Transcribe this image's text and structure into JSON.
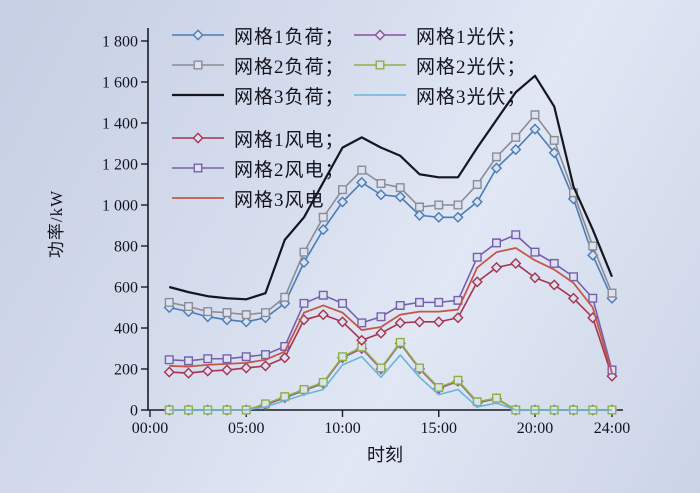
{
  "figure": {
    "background_top": "#c6cfe3",
    "background_bottom": "#cbd4e7",
    "axis_color": "#1b1b26",
    "text_color": "#14141e"
  },
  "chart_data": {
    "type": "line",
    "title": "",
    "xlabel": "时刻",
    "ylabel": "功率/kW",
    "xlim": [
      0,
      24
    ],
    "ylim": [
      0,
      1800
    ],
    "grid": false,
    "legend_position": "top-inside-two-columns",
    "marker_fill": "#dbe1ef",
    "x_ticks": {
      "positions": [
        0,
        5,
        10,
        15,
        20,
        24
      ],
      "labels": [
        "00:00",
        "05:00",
        "10:00",
        "15:00",
        "20:00",
        "24:00"
      ]
    },
    "y_ticks": {
      "positions": [
        0,
        200,
        400,
        600,
        800,
        1000,
        1200,
        1400,
        1600,
        1800
      ],
      "labels": [
        "0",
        "200",
        "400",
        "600",
        "800",
        "1 000",
        "1 200",
        "1 400",
        "1 600",
        "1 800"
      ]
    },
    "x_hours": [
      1,
      2,
      3,
      4,
      5,
      6,
      7,
      8,
      9,
      10,
      11,
      12,
      13,
      14,
      15,
      16,
      17,
      18,
      19,
      20,
      21,
      22,
      23,
      24
    ],
    "series": [
      {
        "id": "load1",
        "label": "网格1负荷；",
        "color": "#4a7cb8",
        "marker": "diamond",
        "line_width": 1.6,
        "values": [
          500,
          480,
          455,
          440,
          430,
          450,
          520,
          720,
          880,
          1015,
          1110,
          1050,
          1040,
          950,
          940,
          940,
          1015,
          1180,
          1270,
          1370,
          1255,
          1030,
          755,
          545
        ]
      },
      {
        "id": "load2",
        "label": "网格2负荷；",
        "color": "#8c8c94",
        "marker": "square",
        "line_width": 1.6,
        "values": [
          525,
          505,
          480,
          475,
          465,
          475,
          550,
          770,
          940,
          1075,
          1170,
          1105,
          1085,
          990,
          1000,
          1000,
          1100,
          1235,
          1330,
          1440,
          1315,
          1060,
          800,
          570
        ]
      },
      {
        "id": "load3",
        "label": "网格3负荷；",
        "color": "#16161f",
        "marker": "none",
        "line_width": 2.2,
        "values": [
          600,
          575,
          555,
          545,
          540,
          570,
          830,
          940,
          1110,
          1280,
          1330,
          1280,
          1240,
          1150,
          1135,
          1135,
          1280,
          1415,
          1550,
          1630,
          1480,
          1090,
          880,
          650
        ]
      },
      {
        "id": "pv1",
        "label": "网格1光伏；",
        "color": "#8f4f9f",
        "marker": "diamond",
        "line_width": 1.6,
        "values": [
          0,
          0,
          0,
          0,
          0,
          25,
          60,
          95,
          130,
          255,
          300,
          200,
          325,
          200,
          105,
          140,
          35,
          55,
          0,
          0,
          0,
          0,
          0,
          0
        ]
      },
      {
        "id": "pv2",
        "label": "网格2光伏；",
        "color": "#8fb042",
        "marker": "square",
        "line_width": 1.6,
        "values": [
          0,
          0,
          0,
          0,
          0,
          30,
          65,
          100,
          135,
          260,
          307,
          205,
          330,
          205,
          110,
          145,
          40,
          58,
          0,
          0,
          0,
          0,
          0,
          0
        ]
      },
      {
        "id": "pv3",
        "label": "网格3光伏；",
        "color": "#68b6d8",
        "marker": "none",
        "line_width": 1.6,
        "values": [
          0,
          0,
          0,
          0,
          0,
          15,
          45,
          75,
          100,
          220,
          260,
          160,
          268,
          160,
          75,
          100,
          15,
          34,
          0,
          0,
          0,
          0,
          0,
          0
        ]
      },
      {
        "id": "wind1",
        "label": "网格1风电；",
        "color": "#a63450",
        "marker": "diamond",
        "line_width": 1.6,
        "values": [
          185,
          180,
          190,
          195,
          205,
          215,
          255,
          440,
          465,
          430,
          340,
          375,
          425,
          430,
          430,
          450,
          625,
          695,
          715,
          645,
          610,
          545,
          450,
          165
        ]
      },
      {
        "id": "wind2",
        "label": "网格2风电；",
        "color": "#7660ae",
        "marker": "square",
        "line_width": 1.6,
        "values": [
          245,
          240,
          250,
          250,
          260,
          270,
          310,
          520,
          560,
          520,
          425,
          455,
          510,
          525,
          525,
          535,
          745,
          815,
          855,
          770,
          715,
          650,
          545,
          195
        ]
      },
      {
        "id": "wind3",
        "label": "网格3风电",
        "color": "#c4574a",
        "marker": "none",
        "line_width": 1.8,
        "values": [
          215,
          212,
          220,
          225,
          230,
          245,
          285,
          475,
          510,
          475,
          390,
          405,
          465,
          480,
          480,
          490,
          695,
          770,
          790,
          730,
          685,
          620,
          500,
          180
        ]
      }
    ]
  }
}
